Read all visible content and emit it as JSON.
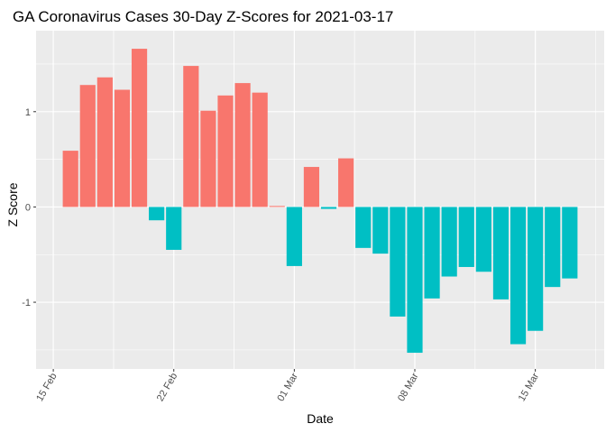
{
  "chart_data": {
    "type": "bar",
    "title": "GA Coronavirus Cases 30-Day Z-Scores for 2021-03-17",
    "xlabel": "Date",
    "ylabel": "Z Score",
    "x": [
      "2021-02-16",
      "2021-02-17",
      "2021-02-18",
      "2021-02-19",
      "2021-02-20",
      "2021-02-21",
      "2021-02-22",
      "2021-02-23",
      "2021-02-24",
      "2021-02-25",
      "2021-02-26",
      "2021-02-27",
      "2021-02-28",
      "2021-03-01",
      "2021-03-02",
      "2021-03-03",
      "2021-03-04",
      "2021-03-05",
      "2021-03-06",
      "2021-03-07",
      "2021-03-08",
      "2021-03-09",
      "2021-03-10",
      "2021-03-11",
      "2021-03-12",
      "2021-03-13",
      "2021-03-14",
      "2021-03-15",
      "2021-03-16",
      "2021-03-17"
    ],
    "values": [
      0.59,
      1.28,
      1.36,
      1.23,
      1.66,
      -0.14,
      -0.45,
      1.48,
      1.01,
      1.17,
      1.3,
      1.2,
      0.01,
      -0.62,
      0.42,
      -0.02,
      0.51,
      -0.43,
      -0.49,
      -1.15,
      -1.53,
      -0.96,
      -0.73,
      -0.63,
      -0.68,
      -0.97,
      -1.44,
      -1.3,
      -0.84,
      -0.75
    ],
    "xlim": [
      "2021-02-14",
      "2021-03-19"
    ],
    "ylim": [
      -1.7,
      1.85
    ],
    "y_ticks": [
      -1,
      0,
      1
    ],
    "y_tick_labels": [
      "-1",
      "0",
      "1"
    ],
    "x_ticks": [
      "2021-02-15",
      "2021-02-22",
      "2021-03-01",
      "2021-03-08",
      "2021-03-15"
    ],
    "x_tick_labels": [
      "15 Feb",
      "22 Feb",
      "01 Mar",
      "08 Mar",
      "15 Mar"
    ],
    "grid": true,
    "legend": "none",
    "colors": {
      "positive": "#F8766D",
      "negative": "#00BFC4",
      "panel": "#EBEBEB",
      "grid": "#FFFFFF"
    }
  }
}
